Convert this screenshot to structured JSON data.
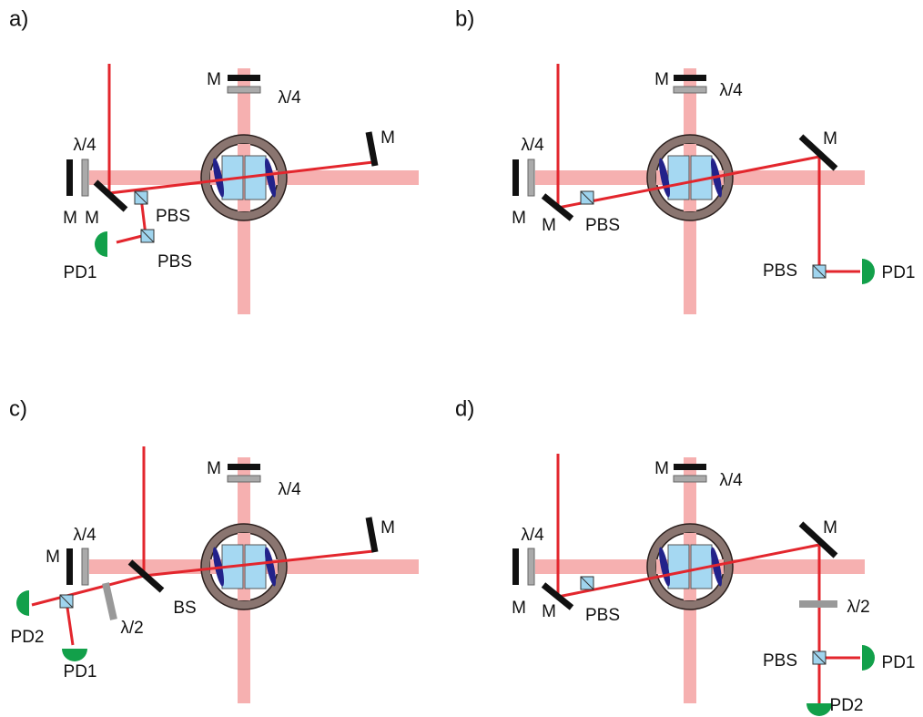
{
  "panels": [
    {
      "label": "a)",
      "texts": [
        "M",
        "λ/4",
        "λ/4",
        "M",
        "M",
        "M",
        "PBS",
        "PBS",
        "PD1"
      ]
    },
    {
      "label": "b)",
      "texts": [
        "M",
        "λ/4",
        "λ/4",
        "M",
        "M",
        "M",
        "PBS",
        "PBS",
        "PD1"
      ]
    },
    {
      "label": "c)",
      "texts": [
        "M",
        "λ/4",
        "λ/4",
        "M",
        "M",
        "BS",
        "λ/2",
        "PD2",
        "PD1"
      ]
    },
    {
      "label": "d)",
      "texts": [
        "M",
        "λ/4",
        "λ/4",
        "M",
        "M",
        "M",
        "PBS",
        "λ/2",
        "PBS",
        "PD1",
        "PD2"
      ]
    }
  ]
}
